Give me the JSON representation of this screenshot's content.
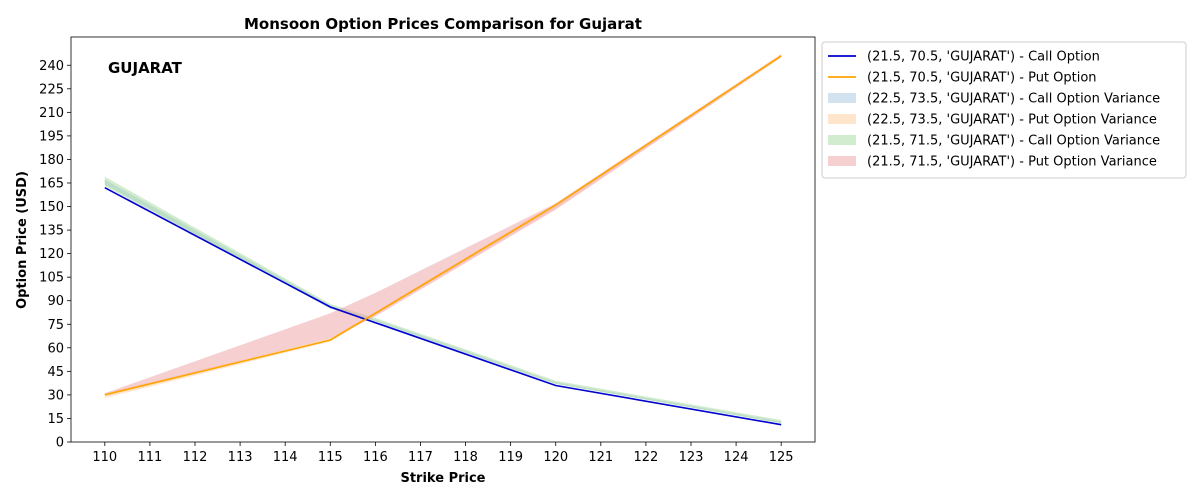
{
  "chart_data": {
    "type": "line",
    "title": "Monsoon Option Prices Comparison for Gujarat",
    "xlabel": "Strike Price",
    "ylabel": "Option Price (USD)",
    "annotation": "GUJARAT",
    "x": [
      110,
      115,
      116,
      120,
      125
    ],
    "xticks": [
      110,
      111,
      112,
      113,
      114,
      115,
      116,
      117,
      118,
      119,
      120,
      121,
      122,
      123,
      124,
      125
    ],
    "yticks": [
      0,
      15,
      30,
      45,
      60,
      75,
      90,
      105,
      120,
      135,
      150,
      165,
      180,
      195,
      210,
      225,
      240
    ],
    "xlim": [
      109.25,
      125.75
    ],
    "ylim": [
      0,
      258
    ],
    "grid": false,
    "legend_position": "outside-right",
    "series": [
      {
        "name": "(21.5, 70.5, 'GUJARAT') - Call Option",
        "kind": "line",
        "color": "#0000cc",
        "values": [
          162,
          86,
          76,
          36,
          11
        ]
      },
      {
        "name": "(21.5, 70.5, 'GUJARAT') - Put Option",
        "kind": "line",
        "color": "#ffa500",
        "values": [
          30,
          65,
          82,
          151,
          246
        ]
      }
    ],
    "bands": [
      {
        "name": "(22.5, 73.5, 'GUJARAT') - Call Option Variance",
        "color": "#a6c8e0",
        "opacity": 0.5,
        "lower": [
          164,
          85,
          76,
          37,
          12
        ],
        "upper": [
          167,
          87,
          78,
          38,
          13
        ]
      },
      {
        "name": "(22.5, 73.5, 'GUJARAT') - Put Option Variance",
        "color": "#ffcc99",
        "opacity": 0.5,
        "lower": [
          28,
          64,
          81,
          149,
          245
        ],
        "upper": [
          31,
          66,
          83,
          152,
          247
        ]
      },
      {
        "name": "(21.5, 71.5, 'GUJARAT') - Call Option Variance",
        "color": "#a6d9a0",
        "opacity": 0.5,
        "lower": [
          163,
          86,
          77,
          37,
          12
        ],
        "upper": [
          169,
          88,
          79,
          39,
          14
        ]
      },
      {
        "name": "(21.5, 71.5, 'GUJARAT') - Put Option Variance",
        "color": "#eea0a4",
        "opacity": 0.5,
        "lower": [
          30,
          66,
          80,
          148,
          245
        ],
        "upper": [
          31,
          82,
          95,
          152,
          247
        ]
      }
    ]
  }
}
